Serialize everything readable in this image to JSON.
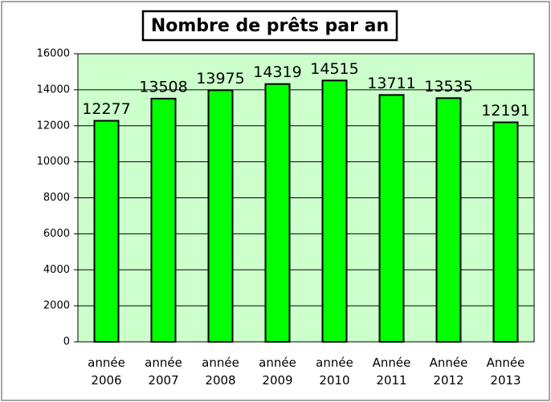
{
  "chart_data": {
    "type": "bar",
    "title": "Nombre de prêts par an",
    "categories": [
      "année 2006",
      "année 2007",
      "année 2008",
      "année 2009",
      "année 2010",
      "Année 2011",
      "Année 2012",
      "Année 2013"
    ],
    "values": [
      12277,
      13508,
      13975,
      14319,
      14515,
      13711,
      13535,
      12191
    ],
    "color": "#00ff00",
    "plot_background": "#ccffcc",
    "ylim": [
      0,
      16000
    ],
    "yticks": [
      0,
      2000,
      4000,
      6000,
      8000,
      10000,
      12000,
      14000,
      16000
    ],
    "grid": true
  }
}
